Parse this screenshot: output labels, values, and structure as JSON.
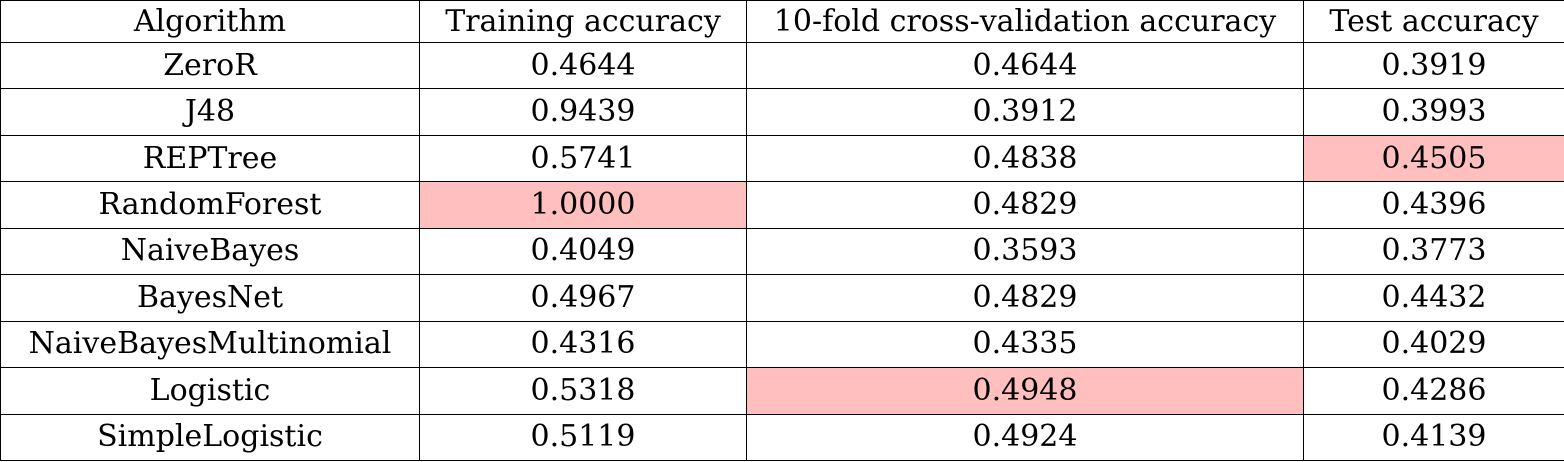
{
  "table": {
    "headers": [
      "Algorithm",
      "Training accuracy",
      "10-fold cross-validation accuracy",
      "Test accuracy"
    ],
    "rows": [
      {
        "algorithm": "ZeroR",
        "training": "0.4644",
        "cv": "0.4644",
        "test": "0.3919"
      },
      {
        "algorithm": "J48",
        "training": "0.9439",
        "cv": "0.3912",
        "test": "0.3993"
      },
      {
        "algorithm": "REPTree",
        "training": "0.5741",
        "cv": "0.4838",
        "test": "0.4505"
      },
      {
        "algorithm": "RandomForest",
        "training": "1.0000",
        "cv": "0.4829",
        "test": "0.4396"
      },
      {
        "algorithm": "NaiveBayes",
        "training": "0.4049",
        "cv": "0.3593",
        "test": "0.3773"
      },
      {
        "algorithm": "BayesNet",
        "training": "0.4967",
        "cv": "0.4829",
        "test": "0.4432"
      },
      {
        "algorithm": "NaiveBayesMultinomial",
        "training": "0.4316",
        "cv": "0.4335",
        "test": "0.4029"
      },
      {
        "algorithm": "Logistic",
        "training": "0.5318",
        "cv": "0.4948",
        "test": "0.4286"
      },
      {
        "algorithm": "SimpleLogistic",
        "training": "0.5119",
        "cv": "0.4924",
        "test": "0.4139"
      }
    ],
    "highlight_color": "#ffbfbf"
  }
}
